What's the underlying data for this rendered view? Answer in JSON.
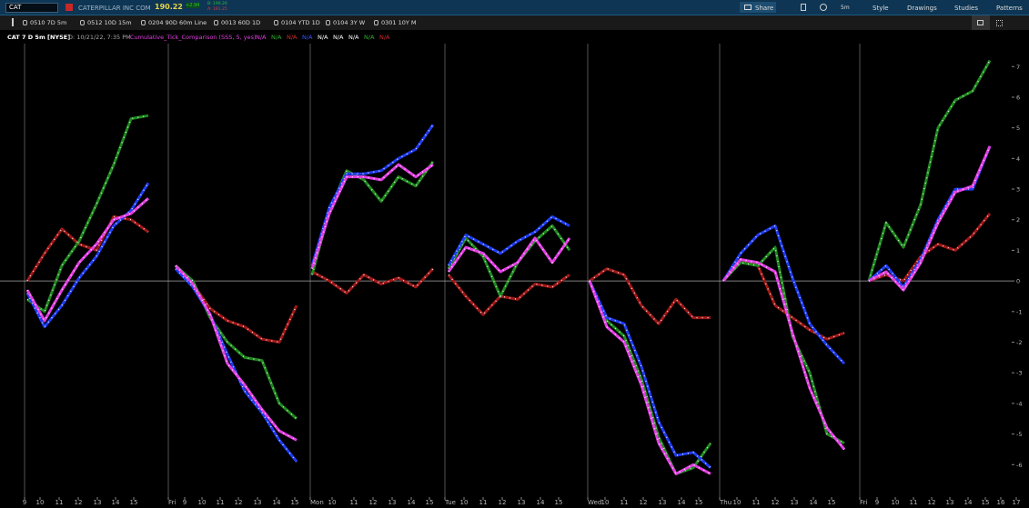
{
  "toolbar": {
    "symbol": "CAT",
    "company": "CATERPILLAR INC COM",
    "last": "190.22",
    "change": "+2.94",
    "bid": "B: 190.20",
    "ask": "A: 191.25",
    "buttons": [
      "Share",
      "5m",
      "Style",
      "Drawings",
      "Studies",
      "Patterns"
    ]
  },
  "timeframes": [
    "0510 7D 5m",
    "0512 10D 15m",
    "0204 90D 60m Line",
    "0013 60D 1D",
    "0104 YTD 1D",
    "0104 3Y W",
    "0301 10Y M"
  ],
  "header": {
    "title": "CAT 7 D 5m [NYSE]",
    "date": "D: 10/21/22, 7:35 PM",
    "study": "Cumulative_Tick_Comparison (SSS, 5, yes)",
    "study_color": "#e23fe2",
    "values": [
      {
        "text": "N/A",
        "color": "#e23fe2"
      },
      {
        "text": "N/A",
        "color": "#2fae2f"
      },
      {
        "text": "N/A",
        "color": "#d02a2a"
      },
      {
        "text": "N/A",
        "color": "#3a55ff"
      },
      {
        "text": "N/A",
        "color": "#ffffff"
      },
      {
        "text": "N/A",
        "color": "#ffffff"
      },
      {
        "text": "N/A",
        "color": "#ffffff"
      },
      {
        "text": "N/A",
        "color": "#2fae2f"
      },
      {
        "text": "N/A",
        "color": "#d02a2a"
      }
    ]
  },
  "chart_data": {
    "type": "line",
    "zero_line": true,
    "xlim": [
      0,
      55.6
    ],
    "ylim": [
      -7,
      7.75
    ],
    "yticks": [
      7,
      6,
      5,
      4,
      3,
      2,
      1,
      0,
      -1,
      -2,
      -3,
      -4,
      -5,
      -6
    ],
    "xticks": [
      {
        "value": 1.35,
        "label": "9"
      },
      {
        "value": 2.2,
        "label": "10"
      },
      {
        "value": 3.25,
        "label": "11"
      },
      {
        "value": 4.3,
        "label": "12"
      },
      {
        "value": 5.35,
        "label": "13"
      },
      {
        "value": 6.35,
        "label": "14"
      },
      {
        "value": 7.35,
        "label": "15"
      },
      {
        "value": 9.25,
        "label": "Fri"
      },
      {
        "value": 10.15,
        "label": "9"
      },
      {
        "value": 11.1,
        "label": "10"
      },
      {
        "value": 12.1,
        "label": "11"
      },
      {
        "value": 13.1,
        "label": "12"
      },
      {
        "value": 14.15,
        "label": "13"
      },
      {
        "value": 15.2,
        "label": "14"
      },
      {
        "value": 16.2,
        "label": "15"
      },
      {
        "value": 17.05,
        "label": "Mon"
      },
      {
        "value": 18.25,
        "label": "10"
      },
      {
        "value": 19.45,
        "label": "11"
      },
      {
        "value": 20.5,
        "label": "12"
      },
      {
        "value": 21.55,
        "label": "13"
      },
      {
        "value": 22.6,
        "label": "14"
      },
      {
        "value": 23.6,
        "label": "15"
      },
      {
        "value": 24.45,
        "label": "Tue"
      },
      {
        "value": 25.5,
        "label": "10"
      },
      {
        "value": 26.55,
        "label": "11"
      },
      {
        "value": 27.6,
        "label": "12"
      },
      {
        "value": 28.65,
        "label": "13"
      },
      {
        "value": 29.7,
        "label": "14"
      },
      {
        "value": 30.7,
        "label": "15"
      },
      {
        "value": 32.3,
        "label": "Wed"
      },
      {
        "value": 33.25,
        "label": "10"
      },
      {
        "value": 34.3,
        "label": "11"
      },
      {
        "value": 35.35,
        "label": "12"
      },
      {
        "value": 36.4,
        "label": "13"
      },
      {
        "value": 37.45,
        "label": "14"
      },
      {
        "value": 38.4,
        "label": "15"
      },
      {
        "value": 39.55,
        "label": "Thu"
      },
      {
        "value": 40.5,
        "label": "10"
      },
      {
        "value": 41.55,
        "label": "11"
      },
      {
        "value": 42.6,
        "label": "12"
      },
      {
        "value": 43.65,
        "label": "13"
      },
      {
        "value": 44.7,
        "label": "14"
      },
      {
        "value": 45.7,
        "label": "15"
      },
      {
        "value": 47.25,
        "label": "Fri"
      },
      {
        "value": 48.2,
        "label": "9"
      },
      {
        "value": 49.2,
        "label": "10"
      },
      {
        "value": 50.2,
        "label": "11"
      },
      {
        "value": 51.2,
        "label": "12"
      },
      {
        "value": 52.2,
        "label": "13"
      },
      {
        "value": 53.2,
        "label": "14"
      },
      {
        "value": 54.15,
        "label": "15"
      },
      {
        "value": 55,
        "label": "16"
      },
      {
        "value": 55.85,
        "label": "17"
      }
    ],
    "x": [
      1.5,
      2.45,
      3.4,
      4.35,
      5.3,
      6.25,
      7.2,
      8.15,
      8.9,
      9.65,
      10.6,
      11.55,
      12.5,
      13.45,
      14.4,
      15.35,
      16.3,
      16.7,
      17.15,
      18.1,
      19.05,
      20,
      20.95,
      21.9,
      22.85,
      23.8,
      24.2,
      24.65,
      25.6,
      26.55,
      27.5,
      28.45,
      29.4,
      30.35,
      31.3,
      31.85,
      32.4,
      33.35,
      34.3,
      35.25,
      36.2,
      37.15,
      38.1,
      39.05,
      39.4,
      39.75,
      40.7,
      41.65,
      42.6,
      43.55,
      44.5,
      45.45,
      46.4,
      47.05,
      47.75,
      48.7,
      49.65,
      50.6,
      51.55,
      52.5,
      53.45,
      54.4
    ],
    "series": [
      {
        "color": "#a01818",
        "values": [
          0,
          0.9,
          1.7,
          1.2,
          1.0,
          2.1,
          2.0,
          1.6,
          null,
          0.5,
          -0.1,
          -0.9,
          -1.3,
          -1.5,
          -1.9,
          -2.0,
          -0.8,
          null,
          0.3,
          0,
          -0.4,
          0.2,
          -0.1,
          0.1,
          -0.2,
          0.4,
          null,
          0.2,
          -0.5,
          -1.1,
          -0.5,
          -0.6,
          -0.1,
          -0.2,
          0.2,
          null,
          0,
          0.4,
          0.2,
          -0.8,
          -1.4,
          -0.6,
          -1.2,
          -1.2,
          null,
          0,
          0.7,
          0.5,
          -0.8,
          -1.2,
          -1.6,
          -1.9,
          -1.7,
          null,
          0,
          0.2,
          0,
          0.8,
          1.2,
          1.0,
          1.5,
          2.2
        ]
      },
      {
        "color": "#1f8a1f",
        "values": [
          -0.6,
          -1.0,
          0.5,
          1.3,
          2.5,
          3.8,
          5.3,
          5.4,
          null,
          0.5,
          0,
          -1.2,
          -2.0,
          -2.5,
          -2.6,
          -4.0,
          -4.5,
          null,
          0.2,
          2.3,
          3.6,
          3.3,
          2.6,
          3.4,
          3.1,
          3.9,
          null,
          0.4,
          1.4,
          0.8,
          -0.5,
          0.6,
          1.3,
          1.8,
          1.0,
          null,
          0,
          -1.3,
          -1.8,
          -3.2,
          -5.1,
          -6.3,
          -6.1,
          -5.3,
          null,
          0,
          0.6,
          0.5,
          1.1,
          -1.8,
          -3.0,
          -5.0,
          -5.3,
          null,
          0,
          1.9,
          1.1,
          2.5,
          5.0,
          5.9,
          6.2,
          7.2
        ]
      },
      {
        "color": "#1f3cf0",
        "values": [
          -0.4,
          -1.5,
          -0.8,
          0.1,
          0.8,
          1.8,
          2.3,
          3.2,
          null,
          0.4,
          -0.2,
          -1.1,
          -2.4,
          -3.6,
          -4.3,
          -5.2,
          -5.9,
          null,
          0.5,
          2.4,
          3.5,
          3.5,
          3.6,
          4.0,
          4.3,
          5.1,
          null,
          0.5,
          1.5,
          1.2,
          0.9,
          1.3,
          1.6,
          2.1,
          1.8,
          null,
          0,
          -1.2,
          -1.4,
          -2.8,
          -4.6,
          -5.7,
          -5.6,
          -6.1,
          null,
          0,
          0.9,
          1.5,
          1.8,
          0.1,
          -1.4,
          -2.1,
          -2.7,
          null,
          0,
          0.5,
          -0.2,
          0.7,
          2.0,
          3.0,
          3.0,
          4.4
        ]
      },
      {
        "color": "#e23fe2",
        "values": [
          -0.3,
          -1.3,
          -0.3,
          0.6,
          1.2,
          2.0,
          2.2,
          2.7,
          null,
          0.5,
          -0.1,
          -1.1,
          -2.7,
          -3.4,
          -4.2,
          -4.9,
          -5.2,
          null,
          0.4,
          2.2,
          3.4,
          3.4,
          3.3,
          3.8,
          3.4,
          3.8,
          null,
          0.3,
          1.1,
          0.9,
          0.3,
          0.6,
          1.4,
          0.6,
          1.4,
          null,
          0,
          -1.5,
          -2.0,
          -3.4,
          -5.3,
          -6.3,
          -6.0,
          -6.3,
          null,
          0,
          0.7,
          0.6,
          0.3,
          -1.7,
          -3.5,
          -4.8,
          -5.5,
          null,
          0,
          0.3,
          -0.3,
          0.6,
          1.9,
          2.9,
          3.1,
          4.4
        ]
      }
    ]
  }
}
